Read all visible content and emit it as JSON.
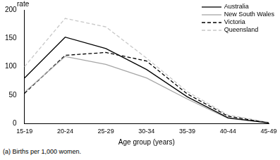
{
  "chart_data": {
    "type": "line",
    "y_label": "rate",
    "x_label": "Age group (years)",
    "footnote": "(a) Births per 1,000 women.",
    "categories": [
      "15-19",
      "20-24",
      "25-29",
      "30-34",
      "35-39",
      "40-44",
      "45-49"
    ],
    "series": [
      {
        "name": "Australia",
        "color": "#000000",
        "line_style": "solid",
        "values": [
          80,
          152,
          132,
          95,
          47,
          10,
          1
        ]
      },
      {
        "name": "New South Wales",
        "color": "#a6a6a6",
        "line_style": "solid",
        "values": [
          55,
          118,
          104,
          80,
          43,
          9,
          1
        ]
      },
      {
        "name": "Victoria",
        "color": "#000000",
        "line_style": "dashed",
        "values": [
          53,
          120,
          125,
          110,
          52,
          13,
          1
        ]
      },
      {
        "name": "Queensland",
        "color": "#c8c8c8",
        "line_style": "dashed",
        "values": [
          100,
          185,
          170,
          115,
          56,
          15,
          2
        ]
      }
    ],
    "ylim": [
      0,
      200
    ],
    "yticks": [
      0,
      50,
      100,
      150,
      200
    ],
    "grid": false,
    "legend": "upper right"
  }
}
